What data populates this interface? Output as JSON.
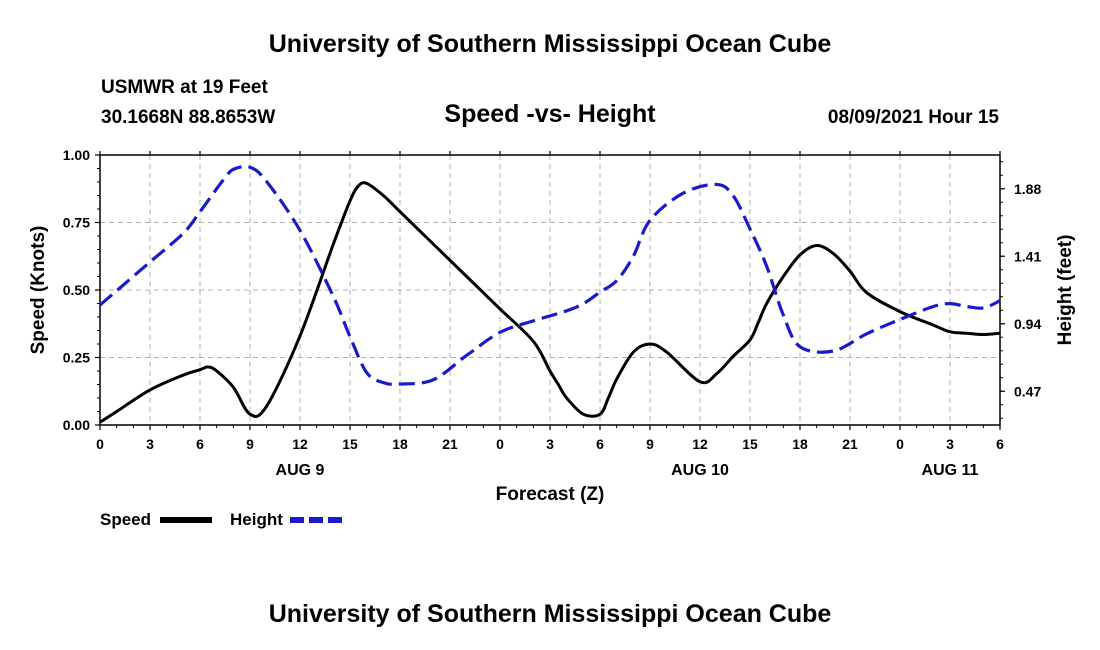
{
  "header": {
    "title": "University of Southern Mississippi Ocean Cube",
    "station": "USMWR at 19 Feet",
    "coords": "30.1668N  88.8653W",
    "subtitle": "Speed -vs- Height",
    "datetime": "08/09/2021 Hour 15"
  },
  "footer": {
    "title": "University of Southern Mississippi Ocean Cube"
  },
  "chart_data": {
    "type": "line",
    "xlabel": "Forecast (Z)",
    "ylabel_left": "Speed (Knots)",
    "ylabel_right": "Height (feet)",
    "x_range_hours": [
      0,
      54
    ],
    "x_ticks": [
      {
        "h": 0,
        "label": "0"
      },
      {
        "h": 3,
        "label": "3"
      },
      {
        "h": 6,
        "label": "6"
      },
      {
        "h": 9,
        "label": "9"
      },
      {
        "h": 12,
        "label": "12"
      },
      {
        "h": 15,
        "label": "15"
      },
      {
        "h": 18,
        "label": "18"
      },
      {
        "h": 21,
        "label": "21"
      },
      {
        "h": 24,
        "label": "0"
      },
      {
        "h": 27,
        "label": "3"
      },
      {
        "h": 30,
        "label": "6"
      },
      {
        "h": 33,
        "label": "9"
      },
      {
        "h": 36,
        "label": "12"
      },
      {
        "h": 39,
        "label": "15"
      },
      {
        "h": 42,
        "label": "18"
      },
      {
        "h": 45,
        "label": "21"
      },
      {
        "h": 48,
        "label": "0"
      },
      {
        "h": 51,
        "label": "3"
      },
      {
        "h": 54,
        "label": "6"
      }
    ],
    "day_labels": [
      {
        "h": 12,
        "label": "AUG 9"
      },
      {
        "h": 36,
        "label": "AUG 10"
      },
      {
        "h": 51,
        "label": "AUG 11"
      }
    ],
    "left_axis": {
      "range": [
        0,
        1
      ],
      "ticks": [
        0,
        0.25,
        0.5,
        0.75,
        1
      ],
      "tick_labels": [
        "0.00",
        "0.25",
        "0.50",
        "0.75",
        "1.00"
      ]
    },
    "right_axis": {
      "range": [
        0.235,
        2.115
      ],
      "ticks": [
        0.47,
        0.94,
        1.41,
        1.88
      ],
      "tick_labels": [
        "0.47",
        "0.94",
        "1.41",
        "1.88"
      ]
    },
    "legend": [
      {
        "name": "Speed",
        "color": "#000000",
        "dash": "solid"
      },
      {
        "name": "Height",
        "color": "#1a1acc",
        "dash": "dashed"
      }
    ],
    "series": [
      {
        "name": "Speed",
        "axis": "left",
        "color": "#000000",
        "x": [
          0,
          1,
          3,
          5,
          6,
          6.5,
          7,
          8,
          9,
          10,
          12,
          14,
          15,
          15.5,
          16,
          17,
          18,
          20,
          22,
          24,
          26,
          27,
          27.5,
          28,
          29,
          30,
          30.5,
          31,
          32,
          33,
          34,
          36,
          37,
          38,
          39,
          39.5,
          40,
          41,
          42,
          43,
          44,
          45,
          46,
          48,
          50,
          51,
          52,
          53,
          54
        ],
        "values": [
          0.01,
          0.05,
          0.13,
          0.185,
          0.205,
          0.215,
          0.2,
          0.14,
          0.04,
          0.07,
          0.33,
          0.67,
          0.83,
          0.885,
          0.895,
          0.85,
          0.79,
          0.67,
          0.55,
          0.43,
          0.31,
          0.2,
          0.15,
          0.1,
          0.04,
          0.04,
          0.1,
          0.17,
          0.27,
          0.3,
          0.27,
          0.16,
          0.19,
          0.255,
          0.315,
          0.38,
          0.45,
          0.55,
          0.63,
          0.665,
          0.635,
          0.57,
          0.49,
          0.42,
          0.37,
          0.345,
          0.34,
          0.335,
          0.34
        ]
      },
      {
        "name": "Height",
        "axis": "right",
        "color": "#1a1acc",
        "x": [
          0,
          1,
          3,
          5,
          6,
          7,
          7.5,
          8,
          9,
          10,
          12,
          14,
          15,
          16,
          17,
          18,
          20,
          22,
          24,
          26,
          28,
          29,
          30,
          31,
          32,
          33,
          35,
          37,
          38,
          39,
          40,
          41,
          42,
          44,
          46,
          48,
          50,
          51,
          52,
          53,
          54
        ],
        "values": [
          1.07,
          1.17,
          1.37,
          1.57,
          1.72,
          1.88,
          1.955,
          2.015,
          2.03,
          1.93,
          1.59,
          1.13,
          0.85,
          0.6,
          0.53,
          0.52,
          0.55,
          0.72,
          0.88,
          0.96,
          1.03,
          1.08,
          1.16,
          1.24,
          1.41,
          1.66,
          1.85,
          1.91,
          1.83,
          1.6,
          1.34,
          1.0,
          0.78,
          0.75,
          0.87,
          0.97,
          1.06,
          1.08,
          1.06,
          1.05,
          1.1
        ]
      }
    ]
  }
}
